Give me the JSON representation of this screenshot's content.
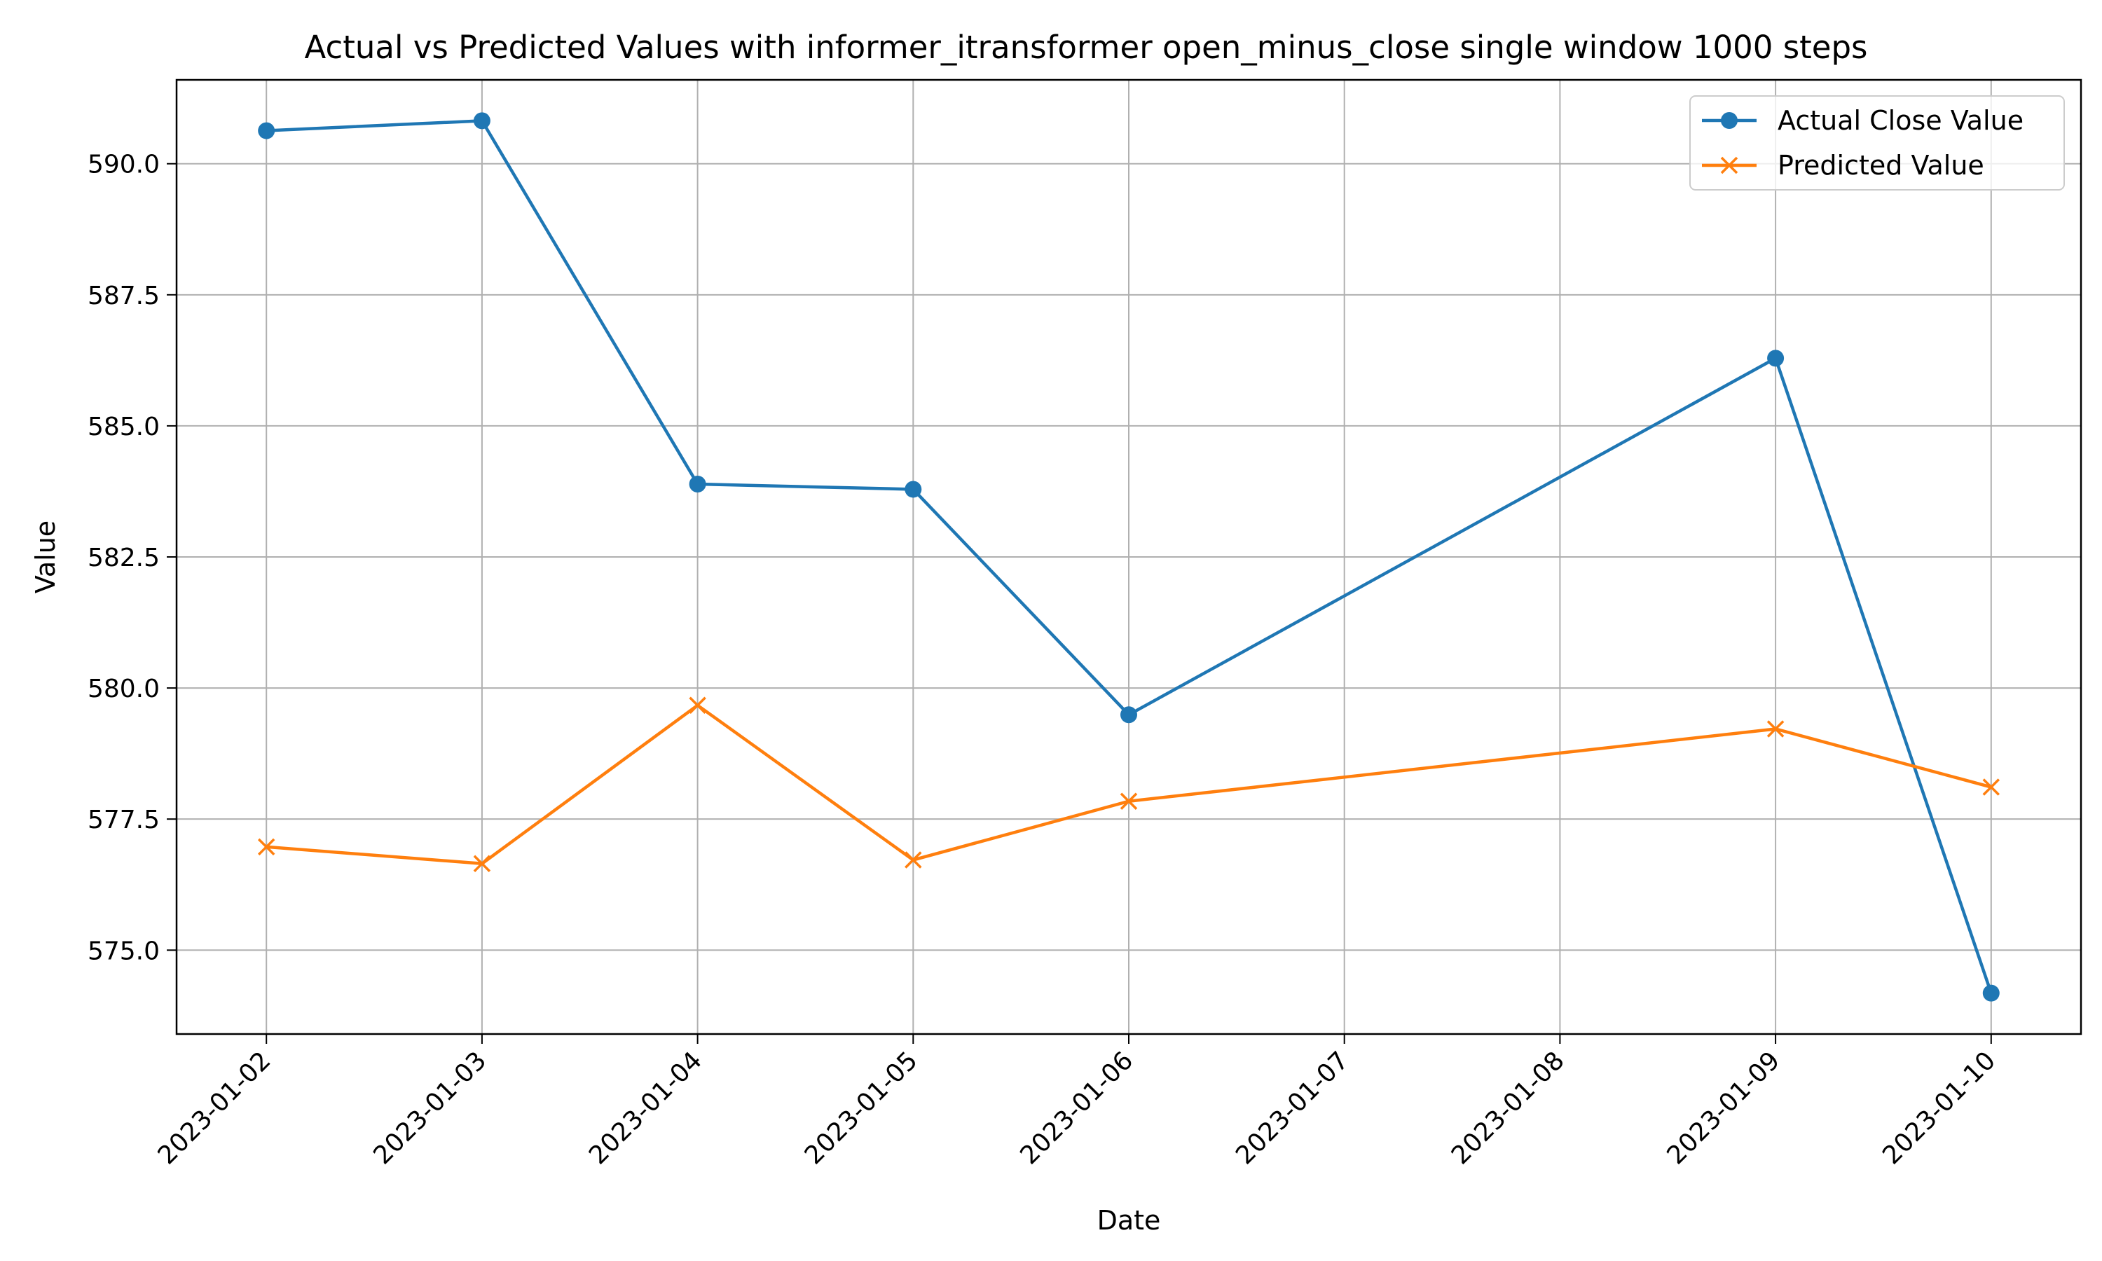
{
  "chart_data": {
    "type": "line",
    "title": "Actual vs Predicted Values with informer_itransformer open_minus_close single window 1000 steps",
    "xlabel": "Date",
    "ylabel": "Value",
    "x_ticks": [
      "2023-01-02",
      "2023-01-03",
      "2023-01-04",
      "2023-01-05",
      "2023-01-06",
      "2023-01-07",
      "2023-01-08",
      "2023-01-09",
      "2023-01-10"
    ],
    "y_ticks": [
      "575.0",
      "577.5",
      "580.0",
      "582.5",
      "585.0",
      "587.5",
      "590.0"
    ],
    "ylim": [
      573.4,
      591.6
    ],
    "xlim": [
      "2023-01-01T14:00",
      "2023-01-10T10:00"
    ],
    "grid": true,
    "legend_position": "upper right",
    "series": [
      {
        "name": "Actual Close Value",
        "color": "#1f77b4",
        "marker": "circle",
        "x": [
          "2023-01-02",
          "2023-01-03",
          "2023-01-04",
          "2023-01-05",
          "2023-01-06",
          "2023-01-09",
          "2023-01-10"
        ],
        "y": [
          590.63,
          590.82,
          583.89,
          583.79,
          579.49,
          586.29,
          574.18
        ]
      },
      {
        "name": "Predicted Value",
        "color": "#ff7f0e",
        "marker": "x",
        "x": [
          "2023-01-02",
          "2023-01-03",
          "2023-01-04",
          "2023-01-05",
          "2023-01-06",
          "2023-01-09",
          "2023-01-10"
        ],
        "y": [
          576.97,
          576.65,
          579.67,
          576.72,
          577.84,
          579.22,
          578.11
        ]
      }
    ]
  }
}
